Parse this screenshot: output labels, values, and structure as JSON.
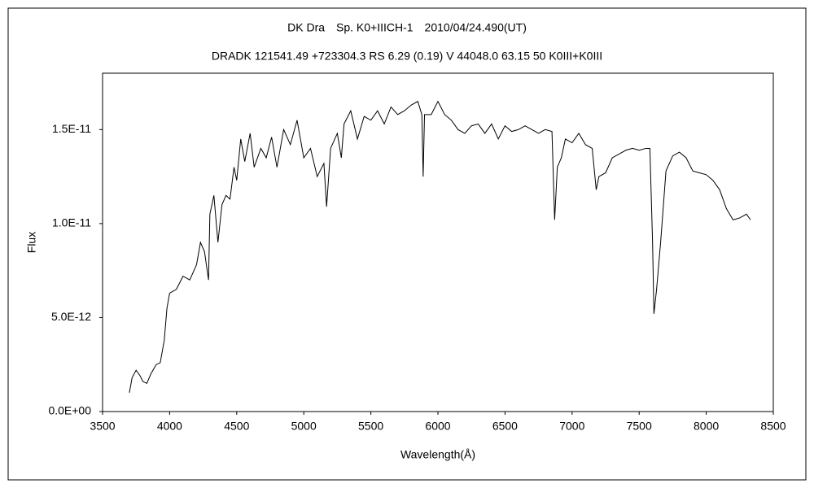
{
  "chart_data": {
    "type": "line",
    "title": "DK Dra　Sp. K0+IIICH-1　2010/04/24.490(UT)",
    "subtitle": "DRADK 121541.49 +723304.3 RS 6.29 (0.19) V 44048.0 63.15 50 K0III+K0III",
    "x_label": "Wavelength(Å)",
    "y_label": "Flux",
    "color": "#000000",
    "grid": false,
    "xlim": [
      3500,
      8500
    ],
    "xticks": [
      3500,
      4000,
      4500,
      5000,
      5500,
      6000,
      6500,
      7000,
      7500,
      8000,
      8500
    ],
    "ylim": [
      0,
      1.8e-11
    ],
    "yticks": [
      {
        "value": 0,
        "label": "0.0E+00"
      },
      {
        "value": 5e-12,
        "label": "5.0E-12"
      },
      {
        "value": 1e-11,
        "label": "1.0E-11"
      },
      {
        "value": 1.5e-11,
        "label": "1.5E-11"
      }
    ],
    "x": [
      3700,
      3720,
      3750,
      3780,
      3800,
      3830,
      3860,
      3900,
      3930,
      3960,
      3980,
      4000,
      4050,
      4100,
      4150,
      4200,
      4230,
      4260,
      4290,
      4300,
      4330,
      4360,
      4390,
      4420,
      4450,
      4480,
      4500,
      4530,
      4560,
      4600,
      4630,
      4680,
      4720,
      4760,
      4800,
      4850,
      4900,
      4950,
      5000,
      5050,
      5100,
      5150,
      5170,
      5200,
      5250,
      5280,
      5300,
      5350,
      5400,
      5450,
      5500,
      5550,
      5600,
      5650,
      5700,
      5750,
      5800,
      5850,
      5880,
      5890,
      5900,
      5950,
      6000,
      6050,
      6100,
      6150,
      6200,
      6250,
      6300,
      6350,
      6400,
      6450,
      6500,
      6550,
      6600,
      6650,
      6700,
      6750,
      6800,
      6850,
      6870,
      6890,
      6920,
      6950,
      7000,
      7050,
      7100,
      7150,
      7180,
      7200,
      7250,
      7300,
      7350,
      7400,
      7450,
      7500,
      7550,
      7580,
      7600,
      7610,
      7630,
      7660,
      7700,
      7750,
      7800,
      7850,
      7900,
      7950,
      8000,
      8050,
      8100,
      8150,
      8200,
      8250,
      8300,
      8330
    ],
    "values": [
      1e-12,
      1.8e-12,
      2.2e-12,
      1.9e-12,
      1.6e-12,
      1.5e-12,
      2e-12,
      2.5e-12,
      2.6e-12,
      3.8e-12,
      5.5e-12,
      6.3e-12,
      6.5e-12,
      7.2e-12,
      7e-12,
      7.8e-12,
      9e-12,
      8.5e-12,
      7e-12,
      1.05e-11,
      1.15e-11,
      9e-12,
      1.1e-11,
      1.15e-11,
      1.13e-11,
      1.3e-11,
      1.23e-11,
      1.45e-11,
      1.33e-11,
      1.48e-11,
      1.3e-11,
      1.4e-11,
      1.35e-11,
      1.46e-11,
      1.3e-11,
      1.5e-11,
      1.42e-11,
      1.55e-11,
      1.35e-11,
      1.4e-11,
      1.25e-11,
      1.32e-11,
      1.09e-11,
      1.4e-11,
      1.48e-11,
      1.35e-11,
      1.53e-11,
      1.6e-11,
      1.45e-11,
      1.57e-11,
      1.55e-11,
      1.6e-11,
      1.53e-11,
      1.62e-11,
      1.58e-11,
      1.6e-11,
      1.63e-11,
      1.65e-11,
      1.58e-11,
      1.25e-11,
      1.58e-11,
      1.58e-11,
      1.65e-11,
      1.58e-11,
      1.55e-11,
      1.5e-11,
      1.48e-11,
      1.52e-11,
      1.53e-11,
      1.48e-11,
      1.53e-11,
      1.45e-11,
      1.52e-11,
      1.49e-11,
      1.5e-11,
      1.52e-11,
      1.5e-11,
      1.48e-11,
      1.5e-11,
      1.49e-11,
      1.02e-11,
      1.3e-11,
      1.35e-11,
      1.45e-11,
      1.43e-11,
      1.48e-11,
      1.42e-11,
      1.4e-11,
      1.18e-11,
      1.25e-11,
      1.27e-11,
      1.35e-11,
      1.37e-11,
      1.39e-11,
      1.4e-11,
      1.39e-11,
      1.4e-11,
      1.4e-11,
      9e-12,
      5.2e-12,
      6.5e-12,
      9e-12,
      1.28e-11,
      1.36e-11,
      1.38e-11,
      1.35e-11,
      1.28e-11,
      1.27e-11,
      1.26e-11,
      1.23e-11,
      1.18e-11,
      1.08e-11,
      1.02e-11,
      1.03e-11,
      1.05e-11,
      1.02e-11
    ]
  }
}
